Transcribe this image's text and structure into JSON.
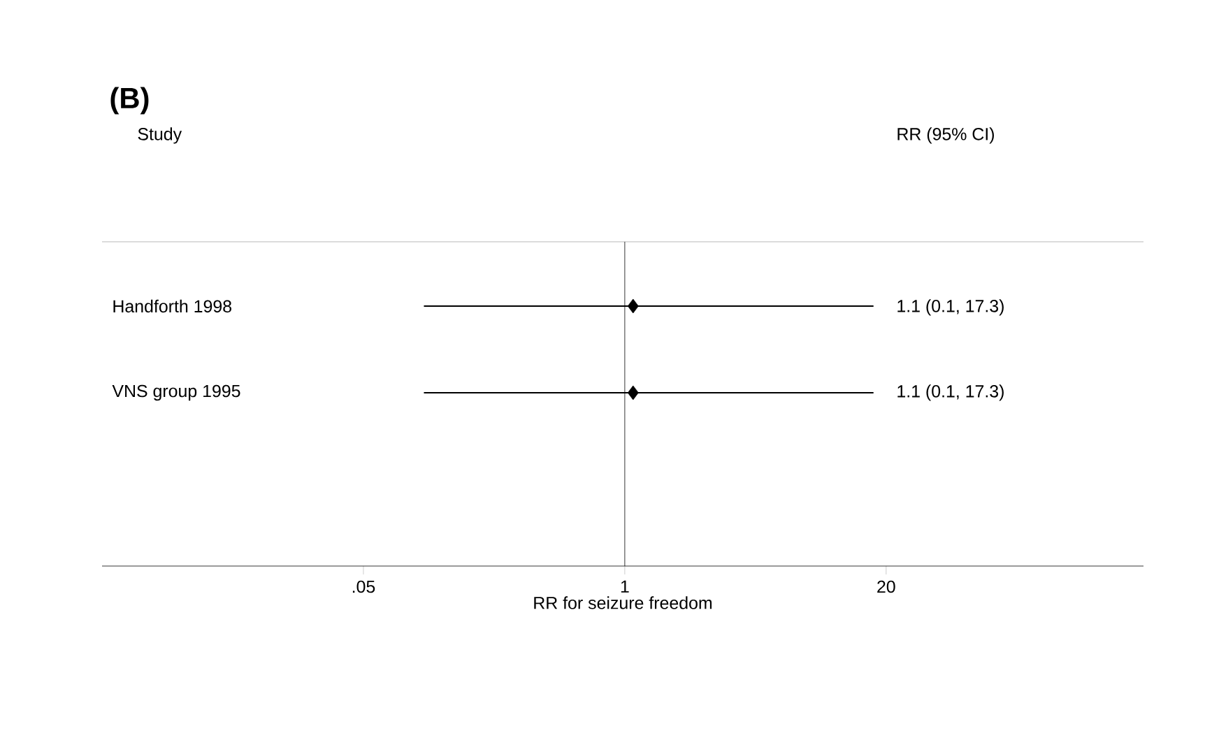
{
  "chart_data": {
    "type": "scatter",
    "orientation": "horizontal",
    "log": "x",
    "marker": "diamond",
    "color": "#000000",
    "categories": [
      "Handforth 1998",
      "VNS group 1995"
    ],
    "values": [
      1.1,
      1.1
    ],
    "errors": [
      [
        0.1,
        17.3
      ],
      [
        0.1,
        17.3
      ]
    ],
    "xlim": [
      0.0025,
      382
    ],
    "xticks": [
      {
        "value": 0.05,
        "label": ".05"
      },
      1,
      20
    ],
    "xlabel": "RR for seizure freedom",
    "ref_lines": [
      {
        "axis": "x",
        "value": 1
      }
    ],
    "annotations": [
      "(B)",
      "Study",
      "RR (95% CI)",
      "1.1 (0.1, 17.3)",
      "1.1 (0.1, 17.3)"
    ]
  }
}
